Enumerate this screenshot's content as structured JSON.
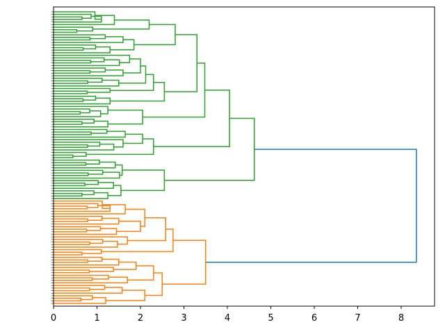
{
  "chart_data": {
    "type": "dendrogram",
    "orientation": "left",
    "xlabel": "",
    "ylabel": "",
    "xlim": [
      0,
      8.8
    ],
    "xticks": [
      "0",
      "1",
      "2",
      "3",
      "4",
      "5",
      "6",
      "7",
      "8"
    ],
    "leaf_label_prefix": "english-",
    "colors": {
      "cluster1": "#2ca02c",
      "cluster2": "#ff7f0e",
      "above_threshold": "#1f77b4"
    },
    "root_height": 8.35,
    "tree": {
      "h": 8.35,
      "color": "above_threshold",
      "c": [
        {
          "h": 4.62,
          "color": "cluster1",
          "c": [
            {
              "h": 4.05,
              "c": [
                {
                  "h": 3.48,
                  "c": [
                    {
                      "h": 3.3,
                      "c": [
                        {
                          "h": 2.8,
                          "c": [
                            {
                              "h": 2.2,
                              "c": [
                                {
                                  "g": 6,
                                  "h": 1.4
                                },
                                {
                                  "g": 3,
                                  "h": 0.9
                                }
                              ]
                            },
                            {
                              "h": 1.85,
                              "c": [
                                {
                                  "g": 4,
                                  "h": 1.6
                                },
                                {
                                  "g": 4,
                                  "h": 1.3
                                }
                              ]
                            }
                          ]
                        },
                        {
                          "h": 2.55,
                          "c": [
                            {
                              "h": 2.3,
                              "c": [
                                {
                                  "h": 2.12,
                                  "c": [
                                    {
                                      "h": 2.0,
                                      "c": [
                                        {
                                          "g": 5,
                                          "h": 1.75
                                        },
                                        {
                                          "g": 4,
                                          "h": 1.6
                                        }
                                      ]
                                    },
                                    {
                                      "g": 4,
                                      "h": 1.5
                                    }
                                  ]
                                },
                                {
                                  "g": 3,
                                  "h": 1.3
                                }
                              ]
                            },
                            {
                              "g": 4,
                              "h": 1.3
                            }
                          ]
                        }
                      ]
                    },
                    {
                      "h": 2.05,
                      "c": [
                        {
                          "g": 5,
                          "h": 1.25
                        },
                        {
                          "g": 4,
                          "h": 1.25
                        }
                      ]
                    }
                  ]
                },
                {
                  "h": 2.3,
                  "c": [
                    {
                      "h": 2.05,
                      "c": [
                        {
                          "g": 4,
                          "h": 1.65
                        },
                        {
                          "g": 5,
                          "h": 1.6
                        }
                      ]
                    },
                    {
                      "g": 3,
                      "h": 0.75
                    }
                  ]
                }
              ]
            },
            {
              "h": 2.55,
              "c": [
                {
                  "h": 1.58,
                  "c": [
                    {
                      "g": 4,
                      "h": 1.42
                    },
                    {
                      "g": 4,
                      "h": 1.52
                    }
                  ]
                },
                {
                  "h": 1.55,
                  "c": [
                    {
                      "g": 4,
                      "h": 1.38
                    },
                    {
                      "g": 4,
                      "h": 1.25
                    }
                  ]
                }
              ]
            }
          ]
        },
        {
          "h": 3.5,
          "color": "cluster2",
          "c": [
            {
              "h": 2.75,
              "c": [
                {
                  "h": 2.58,
                  "c": [
                    {
                      "h": 2.1,
                      "c": [
                        {
                          "g": 6,
                          "h": 1.65
                        },
                        {
                          "h": 2.0,
                          "c": [
                            {
                              "g": 4,
                              "h": 1.5
                            },
                            {
                              "g": 4,
                              "h": 1.45
                            }
                          ]
                        }
                      ]
                    },
                    {
                      "g": 5,
                      "h": 1.7
                    }
                  ]
                },
                {
                  "g": 3,
                  "h": 1.1
                }
              ]
            },
            {
              "h": 2.5,
              "c": [
                {
                  "h": 2.3,
                  "c": [
                    {
                      "h": 1.9,
                      "c": [
                        {
                          "g": 4,
                          "h": 1.5
                        },
                        {
                          "g": 3,
                          "h": 1.38
                        }
                      ]
                    },
                    {
                      "g": 4,
                      "h": 1.7
                    }
                  ]
                },
                {
                  "h": 2.1,
                  "c": [
                    {
                      "g": 4,
                      "h": 1.58
                    },
                    {
                      "g": 4,
                      "h": 1.2
                    }
                  ]
                }
              ]
            }
          ]
        }
      ]
    }
  }
}
